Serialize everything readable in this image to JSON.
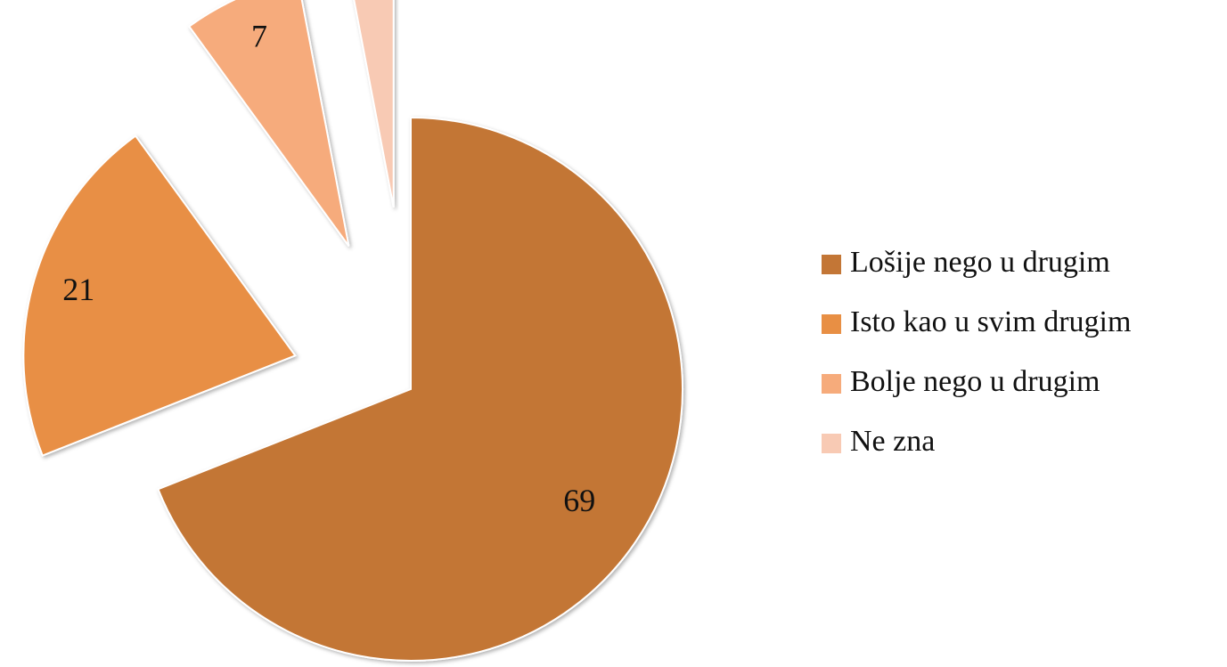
{
  "chart_data": {
    "type": "pie",
    "categories": [
      "Lošije nego u drugim",
      "Isto kao u svim drugim",
      "Bolje nego u drugim",
      "Ne zna"
    ],
    "values": [
      69,
      21,
      7,
      3
    ],
    "colors": [
      "#c37636",
      "#e88f44",
      "#f6ab7b",
      "#f8cab4"
    ],
    "legend": "right"
  }
}
